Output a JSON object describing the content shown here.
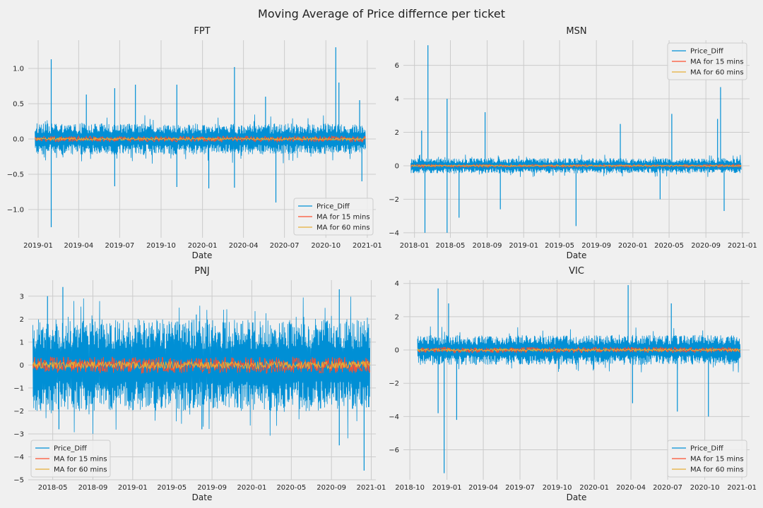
{
  "figure_title": "Moving Average of Price differnce per ticket",
  "colors": {
    "background": "#f0f0f0",
    "grid": "#cbcbcb",
    "price_diff": "#008fd5",
    "ma15": "#fc4f30",
    "ma60": "#e5ae38"
  },
  "chart_data": [
    {
      "type": "line",
      "title": "FPT",
      "xlabel": "Date",
      "ylabel": "",
      "x_range": [
        "2018-12-10",
        "2021-01-20"
      ],
      "ylim": [
        -1.4,
        1.4
      ],
      "x_ticks": [
        "2019-01",
        "2019-04",
        "2019-07",
        "2019-10",
        "2020-01",
        "2020-04",
        "2020-07",
        "2020-10",
        "2021-01"
      ],
      "y_ticks": [
        -1.0,
        -0.5,
        0.0,
        0.5,
        1.0
      ],
      "y_tick_labels": [
        "−1.0",
        "−0.5",
        "0.0",
        "0.5",
        "1.0"
      ],
      "data_start": "2018-12-25",
      "data_end": "2020-12-28",
      "typical_amplitude": 0.22,
      "spikes": [
        [
          "2019-01-30",
          1.13
        ],
        [
          "2019-01-30",
          -1.25
        ],
        [
          "2019-04-18",
          0.63
        ],
        [
          "2019-06-20",
          0.72
        ],
        [
          "2019-06-20",
          -0.67
        ],
        [
          "2019-08-05",
          0.77
        ],
        [
          "2019-11-05",
          0.77
        ],
        [
          "2019-11-05",
          -0.68
        ],
        [
          "2020-01-15",
          -0.7
        ],
        [
          "2020-03-12",
          1.02
        ],
        [
          "2020-03-12",
          -0.69
        ],
        [
          "2020-05-20",
          0.6
        ],
        [
          "2020-06-12",
          -0.9
        ],
        [
          "2020-10-23",
          1.3
        ],
        [
          "2020-10-30",
          0.8
        ],
        [
          "2020-12-15",
          0.55
        ],
        [
          "2020-12-20",
          -0.6
        ]
      ],
      "legend_position": "lower right",
      "series": [
        {
          "name": "Price_Diff"
        },
        {
          "name": "MA for 15 mins"
        },
        {
          "name": "MA for 60 mins"
        }
      ]
    },
    {
      "type": "line",
      "title": "MSN",
      "xlabel": "Date",
      "ylabel": "",
      "x_range": [
        "2017-11-25",
        "2021-01-25"
      ],
      "ylim": [
        -4.3,
        7.5
      ],
      "x_ticks": [
        "2018-01",
        "2018-05",
        "2018-09",
        "2019-01",
        "2019-05",
        "2019-09",
        "2020-01",
        "2020-05",
        "2020-09",
        "2021-01"
      ],
      "y_ticks": [
        -4,
        -2,
        0,
        2,
        4,
        6
      ],
      "y_tick_labels": [
        "−4",
        "−2",
        "0",
        "2",
        "4",
        "6"
      ],
      "data_start": "2017-12-20",
      "data_end": "2020-12-28",
      "typical_amplitude": 0.45,
      "spikes": [
        [
          "2018-01-25",
          2.1
        ],
        [
          "2018-02-15",
          7.2
        ],
        [
          "2018-02-05",
          -4.0
        ],
        [
          "2018-04-20",
          4.0
        ],
        [
          "2018-04-20",
          -4.0
        ],
        [
          "2018-05-30",
          -3.1
        ],
        [
          "2018-08-25",
          3.2
        ],
        [
          "2018-10-15",
          -2.6
        ],
        [
          "2019-06-25",
          -3.6
        ],
        [
          "2019-11-20",
          2.5
        ],
        [
          "2020-04-01",
          -2.0
        ],
        [
          "2020-05-10",
          3.1
        ],
        [
          "2020-10-10",
          2.8
        ],
        [
          "2020-10-20",
          4.7
        ],
        [
          "2020-11-01",
          -2.7
        ]
      ],
      "legend_position": "upper right",
      "series": [
        {
          "name": "Price_Diff"
        },
        {
          "name": "MA for 15 mins"
        },
        {
          "name": "MA for 60 mins"
        }
      ]
    },
    {
      "type": "line",
      "title": "PNJ",
      "xlabel": "Date",
      "ylabel": "",
      "x_range": [
        "2018-02-15",
        "2021-01-15"
      ],
      "ylim": [
        -5.0,
        3.7
      ],
      "x_ticks": [
        "2018-05",
        "2018-09",
        "2019-01",
        "2019-05",
        "2019-09",
        "2020-01",
        "2020-05",
        "2020-09",
        "2021-01"
      ],
      "y_ticks": [
        -5,
        -4,
        -3,
        -2,
        -1,
        0,
        1,
        2,
        3
      ],
      "y_tick_labels": [
        "−5",
        "−4",
        "−3",
        "−2",
        "−1",
        "0",
        "1",
        "2",
        "3"
      ],
      "data_start": "2018-03-01",
      "data_end": "2020-12-28",
      "typical_amplitude": 2.0,
      "spikes": [
        [
          "2018-04-15",
          3.0
        ],
        [
          "2018-06-01",
          3.4
        ],
        [
          "2018-05-20",
          -2.8
        ],
        [
          "2019-07-15",
          2.2
        ],
        [
          "2019-08-01",
          -2.8
        ],
        [
          "2020-09-25",
          3.3
        ],
        [
          "2020-09-25",
          -3.5
        ],
        [
          "2020-12-10",
          -4.6
        ],
        [
          "2020-12-14",
          -0.9
        ]
      ],
      "legend_position": "lower left",
      "series": [
        {
          "name": "Price_Diff"
        },
        {
          "name": "MA for 15 mins"
        },
        {
          "name": "MA for 60 mins"
        }
      ]
    },
    {
      "type": "line",
      "title": "VIC",
      "xlabel": "Date",
      "ylabel": "",
      "x_range": [
        "2018-09-15",
        "2021-01-20"
      ],
      "ylim": [
        -7.8,
        4.2
      ],
      "x_ticks": [
        "2018-10",
        "2019-01",
        "2019-04",
        "2019-07",
        "2019-10",
        "2020-01",
        "2020-04",
        "2020-07",
        "2020-10",
        "2021-01"
      ],
      "y_ticks": [
        -6,
        -4,
        -2,
        0,
        2,
        4
      ],
      "y_tick_labels": [
        "−6",
        "−4",
        "−2",
        "0",
        "2",
        "4"
      ],
      "data_start": "2018-10-20",
      "data_end": "2020-12-28",
      "typical_amplitude": 0.9,
      "spikes": [
        [
          "2018-12-10",
          3.7
        ],
        [
          "2018-12-10",
          -3.8
        ],
        [
          "2018-12-25",
          -7.4
        ],
        [
          "2019-01-05",
          2.8
        ],
        [
          "2019-01-25",
          -4.2
        ],
        [
          "2020-03-25",
          3.9
        ],
        [
          "2020-04-05",
          -3.2
        ],
        [
          "2020-07-10",
          2.8
        ],
        [
          "2020-07-25",
          -3.7
        ],
        [
          "2020-10-10",
          -4.0
        ]
      ],
      "legend_position": "lower right",
      "series": [
        {
          "name": "Price_Diff"
        },
        {
          "name": "MA for 15 mins"
        },
        {
          "name": "MA for 60 mins"
        }
      ]
    }
  ]
}
